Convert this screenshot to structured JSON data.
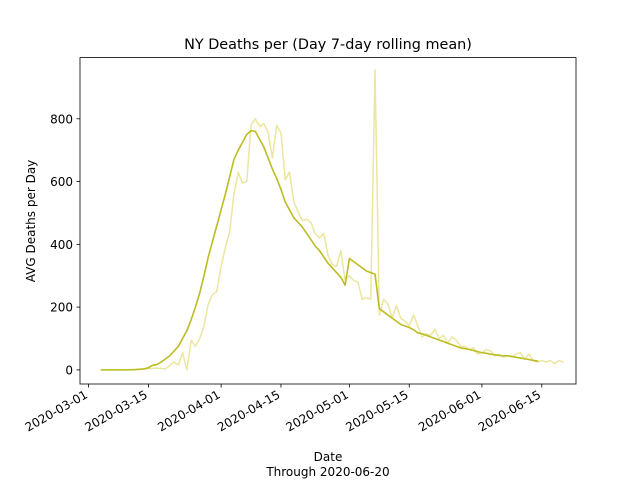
{
  "colors": {
    "raw": "#ebe6a0",
    "mean": "#bcbd22"
  },
  "chart_data": {
    "type": "line",
    "title": "NY Deaths per (Day 7-day rolling mean)",
    "xlabel": "Date",
    "xlabel_sub": "Through 2020-06-20",
    "ylabel": "AVG Deaths per Day",
    "xlim": [
      "2020-02-28",
      "2020-06-23"
    ],
    "ylim": [
      -45,
      995
    ],
    "x_ticks": [
      "2020-03-01",
      "2020-03-15",
      "2020-04-01",
      "2020-04-15",
      "2020-05-01",
      "2020-05-15",
      "2020-06-01",
      "2020-06-15"
    ],
    "y_ticks": [
      0,
      200,
      400,
      600,
      800
    ],
    "series": [
      {
        "key": "raw",
        "points": [
          [
            "2020-03-04",
            0
          ],
          [
            "2020-03-10",
            0
          ],
          [
            "2020-03-12",
            1
          ],
          [
            "2020-03-14",
            3
          ],
          [
            "2020-03-16",
            5
          ],
          [
            "2020-03-18",
            5
          ],
          [
            "2020-03-19",
            3
          ],
          [
            "2020-03-21",
            25
          ],
          [
            "2020-03-22",
            15
          ],
          [
            "2020-03-23",
            55
          ],
          [
            "2020-03-24",
            0
          ],
          [
            "2020-03-25",
            95
          ],
          [
            "2020-03-26",
            75
          ],
          [
            "2020-03-27",
            100
          ],
          [
            "2020-03-28",
            140
          ],
          [
            "2020-03-29",
            210
          ],
          [
            "2020-03-30",
            240
          ],
          [
            "2020-03-31",
            250
          ],
          [
            "2020-04-01",
            330
          ],
          [
            "2020-04-02",
            390
          ],
          [
            "2020-04-03",
            440
          ],
          [
            "2020-04-04",
            560
          ],
          [
            "2020-04-05",
            630
          ],
          [
            "2020-04-06",
            595
          ],
          [
            "2020-04-07",
            600
          ],
          [
            "2020-04-08",
            780
          ],
          [
            "2020-04-09",
            800
          ],
          [
            "2020-04-10",
            775
          ],
          [
            "2020-04-11",
            785
          ],
          [
            "2020-04-12",
            755
          ],
          [
            "2020-04-13",
            675
          ],
          [
            "2020-04-14",
            780
          ],
          [
            "2020-04-15",
            755
          ],
          [
            "2020-04-16",
            605
          ],
          [
            "2020-04-17",
            630
          ],
          [
            "2020-04-18",
            535
          ],
          [
            "2020-04-19",
            505
          ],
          [
            "2020-04-20",
            475
          ],
          [
            "2020-04-21",
            480
          ],
          [
            "2020-04-22",
            470
          ],
          [
            "2020-04-23",
            435
          ],
          [
            "2020-04-24",
            420
          ],
          [
            "2020-04-25",
            435
          ],
          [
            "2020-04-26",
            365
          ],
          [
            "2020-04-27",
            335
          ],
          [
            "2020-04-28",
            330
          ],
          [
            "2020-04-29",
            380
          ],
          [
            "2020-04-30",
            285
          ],
          [
            "2020-05-01",
            300
          ],
          [
            "2020-05-02",
            285
          ],
          [
            "2020-05-03",
            280
          ],
          [
            "2020-05-04",
            225
          ],
          [
            "2020-05-05",
            230
          ],
          [
            "2020-05-06",
            225
          ],
          [
            "2020-05-07",
            955
          ],
          [
            "2020-05-08",
            175
          ],
          [
            "2020-05-09",
            225
          ],
          [
            "2020-05-10",
            210
          ],
          [
            "2020-05-11",
            165
          ],
          [
            "2020-05-12",
            205
          ],
          [
            "2020-05-13",
            165
          ],
          [
            "2020-05-14",
            155
          ],
          [
            "2020-05-15",
            140
          ],
          [
            "2020-05-16",
            175
          ],
          [
            "2020-05-17",
            140
          ],
          [
            "2020-05-18",
            105
          ],
          [
            "2020-05-19",
            115
          ],
          [
            "2020-05-20",
            110
          ],
          [
            "2020-05-21",
            130
          ],
          [
            "2020-05-22",
            100
          ],
          [
            "2020-05-23",
            110
          ],
          [
            "2020-05-24",
            85
          ],
          [
            "2020-05-25",
            105
          ],
          [
            "2020-05-26",
            95
          ],
          [
            "2020-05-27",
            75
          ],
          [
            "2020-05-28",
            75
          ],
          [
            "2020-05-29",
            65
          ],
          [
            "2020-05-30",
            70
          ],
          [
            "2020-05-31",
            50
          ],
          [
            "2020-06-01",
            55
          ],
          [
            "2020-06-02",
            65
          ],
          [
            "2020-06-03",
            60
          ],
          [
            "2020-06-04",
            45
          ],
          [
            "2020-06-05",
            50
          ],
          [
            "2020-06-06",
            40
          ],
          [
            "2020-06-07",
            45
          ],
          [
            "2020-06-08",
            40
          ],
          [
            "2020-06-09",
            50
          ],
          [
            "2020-06-10",
            55
          ],
          [
            "2020-06-11",
            35
          ],
          [
            "2020-06-12",
            50
          ],
          [
            "2020-06-13",
            30
          ],
          [
            "2020-06-14",
            25
          ],
          [
            "2020-06-15",
            30
          ],
          [
            "2020-06-16",
            25
          ],
          [
            "2020-06-17",
            30
          ],
          [
            "2020-06-18",
            20
          ],
          [
            "2020-06-19",
            30
          ],
          [
            "2020-06-20",
            25
          ]
        ]
      },
      {
        "key": "mean",
        "points": [
          [
            "2020-03-04",
            0
          ],
          [
            "2020-03-08",
            0
          ],
          [
            "2020-03-10",
            0
          ],
          [
            "2020-03-12",
            1
          ],
          [
            "2020-03-14",
            3
          ],
          [
            "2020-03-15",
            7
          ],
          [
            "2020-03-16",
            15
          ],
          [
            "2020-03-17",
            17
          ],
          [
            "2020-03-18",
            25
          ],
          [
            "2020-03-19",
            35
          ],
          [
            "2020-03-20",
            45
          ],
          [
            "2020-03-21",
            60
          ],
          [
            "2020-03-22",
            75
          ],
          [
            "2020-03-23",
            100
          ],
          [
            "2020-03-24",
            125
          ],
          [
            "2020-03-25",
            160
          ],
          [
            "2020-03-26",
            200
          ],
          [
            "2020-03-27",
            245
          ],
          [
            "2020-03-28",
            300
          ],
          [
            "2020-03-29",
            360
          ],
          [
            "2020-03-30",
            410
          ],
          [
            "2020-03-31",
            460
          ],
          [
            "2020-04-01",
            510
          ],
          [
            "2020-04-02",
            560
          ],
          [
            "2020-04-03",
            615
          ],
          [
            "2020-04-04",
            670
          ],
          [
            "2020-04-05",
            700
          ],
          [
            "2020-04-06",
            725
          ],
          [
            "2020-04-07",
            750
          ],
          [
            "2020-04-08",
            762
          ],
          [
            "2020-04-09",
            760
          ],
          [
            "2020-04-10",
            735
          ],
          [
            "2020-04-11",
            710
          ],
          [
            "2020-04-12",
            675
          ],
          [
            "2020-04-13",
            640
          ],
          [
            "2020-04-14",
            610
          ],
          [
            "2020-04-15",
            575
          ],
          [
            "2020-04-16",
            535
          ],
          [
            "2020-04-17",
            510
          ],
          [
            "2020-04-18",
            485
          ],
          [
            "2020-04-19",
            470
          ],
          [
            "2020-04-20",
            455
          ],
          [
            "2020-04-21",
            435
          ],
          [
            "2020-04-22",
            415
          ],
          [
            "2020-04-23",
            395
          ],
          [
            "2020-04-24",
            380
          ],
          [
            "2020-04-25",
            360
          ],
          [
            "2020-04-26",
            340
          ],
          [
            "2020-04-27",
            325
          ],
          [
            "2020-04-28",
            310
          ],
          [
            "2020-04-29",
            295
          ],
          [
            "2020-04-30",
            270
          ],
          [
            "2020-05-01",
            355
          ],
          [
            "2020-05-02",
            345
          ],
          [
            "2020-05-03",
            335
          ],
          [
            "2020-05-04",
            325
          ],
          [
            "2020-05-05",
            315
          ],
          [
            "2020-05-06",
            310
          ],
          [
            "2020-05-07",
            305
          ],
          [
            "2020-05-08",
            195
          ],
          [
            "2020-05-09",
            185
          ],
          [
            "2020-05-10",
            175
          ],
          [
            "2020-05-11",
            165
          ],
          [
            "2020-05-12",
            155
          ],
          [
            "2020-05-13",
            145
          ],
          [
            "2020-05-14",
            140
          ],
          [
            "2020-05-15",
            135
          ],
          [
            "2020-05-16",
            128
          ],
          [
            "2020-05-17",
            118
          ],
          [
            "2020-05-18",
            115
          ],
          [
            "2020-05-19",
            110
          ],
          [
            "2020-05-20",
            105
          ],
          [
            "2020-05-21",
            100
          ],
          [
            "2020-05-22",
            95
          ],
          [
            "2020-05-23",
            90
          ],
          [
            "2020-05-24",
            85
          ],
          [
            "2020-05-25",
            80
          ],
          [
            "2020-05-26",
            75
          ],
          [
            "2020-05-27",
            70
          ],
          [
            "2020-05-28",
            68
          ],
          [
            "2020-05-29",
            65
          ],
          [
            "2020-05-30",
            62
          ],
          [
            "2020-05-31",
            58
          ],
          [
            "2020-06-01",
            55
          ],
          [
            "2020-06-02",
            53
          ],
          [
            "2020-06-03",
            50
          ],
          [
            "2020-06-04",
            48
          ],
          [
            "2020-06-05",
            46
          ],
          [
            "2020-06-06",
            45
          ],
          [
            "2020-06-07",
            45
          ],
          [
            "2020-06-08",
            43
          ],
          [
            "2020-06-09",
            40
          ],
          [
            "2020-06-10",
            38
          ],
          [
            "2020-06-11",
            35
          ],
          [
            "2020-06-12",
            33
          ],
          [
            "2020-06-13",
            30
          ],
          [
            "2020-06-14",
            28
          ]
        ]
      }
    ]
  }
}
